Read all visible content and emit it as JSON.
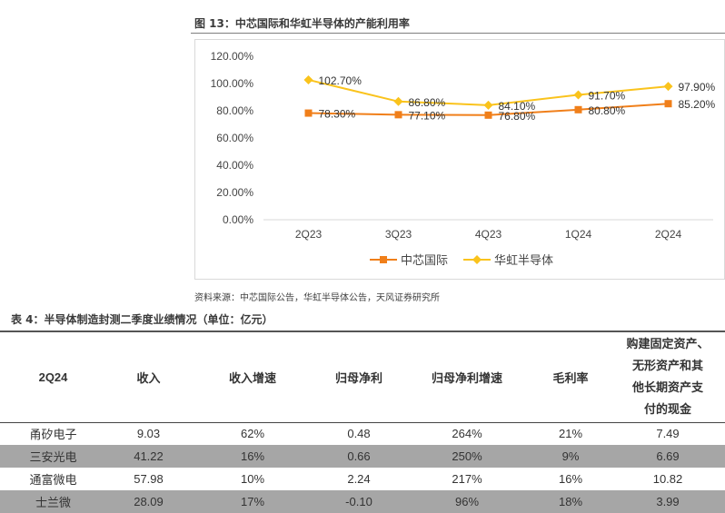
{
  "figure": {
    "title": "图 13：中芯国际和华虹半导体的产能利用率",
    "source": "资料来源：中芯国际公告，华虹半导体公告，天风证券研究所"
  },
  "chart_data": {
    "type": "line",
    "categories": [
      "2Q23",
      "3Q23",
      "4Q23",
      "1Q24",
      "2Q24"
    ],
    "ylim": [
      0,
      120
    ],
    "yticks": [
      0,
      20,
      40,
      60,
      80,
      100,
      120
    ],
    "ytick_labels": [
      "0.00%",
      "20.00%",
      "40.00%",
      "60.00%",
      "80.00%",
      "100.00%",
      "120.00%"
    ],
    "legend_position": "bottom",
    "grid": false,
    "series": [
      {
        "name": "中芯国际",
        "color": "#f07f1a",
        "marker": "square",
        "values": [
          78.3,
          77.1,
          76.8,
          80.8,
          85.2
        ],
        "labels": [
          "78.30%",
          "77.10%",
          "76.80%",
          "80.80%",
          "85.20%"
        ]
      },
      {
        "name": "华虹半导体",
        "color": "#fac31c",
        "marker": "diamond",
        "values": [
          102.7,
          86.8,
          84.1,
          91.7,
          97.9
        ],
        "labels": [
          "102.70%",
          "86.80%",
          "84.10%",
          "91.70%",
          "97.90%"
        ]
      }
    ]
  },
  "table": {
    "title": "表 4：半导体制造封测二季度业绩情况（单位：亿元）",
    "headers": [
      "2Q24",
      "收入",
      "收入增速",
      "归母净利",
      "归母净利增速",
      "毛利率"
    ],
    "last_header_lines": [
      "购建固定资产、",
      "无形资产和其",
      "他长期资产支",
      "付的现金"
    ],
    "rows": [
      [
        "甬矽电子",
        "9.03",
        "62%",
        "0.48",
        "264%",
        "21%",
        "7.49"
      ],
      [
        "三安光电",
        "41.22",
        "16%",
        "0.66",
        "250%",
        "9%",
        "6.69"
      ],
      [
        "通富微电",
        "57.98",
        "10%",
        "2.24",
        "217%",
        "16%",
        "10.82"
      ],
      [
        "士兰微",
        "28.09",
        "17%",
        "-0.10",
        "96%",
        "18%",
        "3.99"
      ]
    ]
  }
}
